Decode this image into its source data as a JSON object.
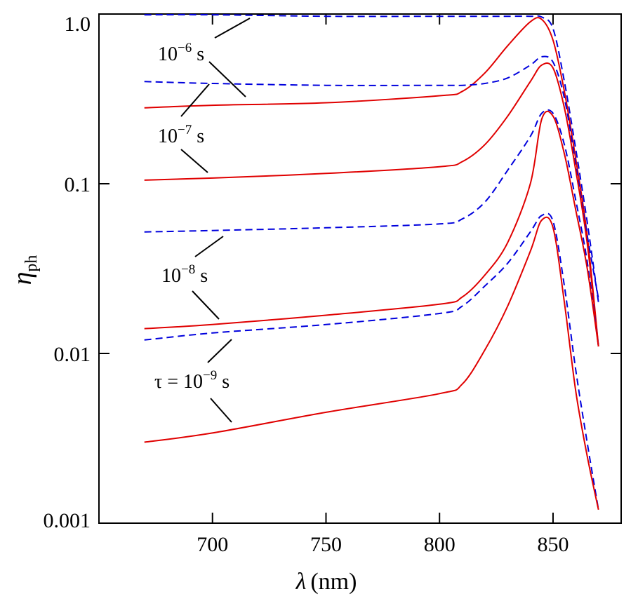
{
  "chart_data": {
    "type": "line",
    "xlabel": {
      "symbol": "λ",
      "unit": "(nm)"
    },
    "ylabel": {
      "symbol": "η",
      "sub": "ph"
    },
    "xlim": [
      650,
      880
    ],
    "ylim": [
      0.001,
      1.0
    ],
    "yscale": "log",
    "xticks": [
      700,
      750,
      800,
      850
    ],
    "yticks": [
      {
        "value": 1.0,
        "label": "1.0"
      },
      {
        "value": 0.1,
        "label": "0.1"
      },
      {
        "value": 0.01,
        "label": "0.01"
      },
      {
        "value": 0.001,
        "label": "0.001"
      }
    ],
    "grid": false,
    "colors": {
      "solid": "#e00000",
      "dashed": "#0000dd"
    },
    "x": [
      670,
      700,
      750,
      800,
      810,
      820,
      830,
      840,
      845,
      850,
      855,
      860,
      865,
      870
    ],
    "series": [
      {
        "tau": "10^-6 s",
        "style": "dashed",
        "values": [
          0.99,
          0.99,
          0.97,
          0.97,
          0.97,
          0.97,
          0.97,
          0.97,
          0.96,
          0.82,
          0.4,
          0.16,
          0.06,
          0.02
        ]
      },
      {
        "tau": "10^-6 s",
        "style": "solid",
        "values": [
          0.28,
          0.29,
          0.3,
          0.33,
          0.35,
          0.45,
          0.65,
          0.9,
          0.93,
          0.7,
          0.35,
          0.14,
          0.05,
          0.011
        ]
      },
      {
        "tau": "10^-7 s",
        "style": "dashed",
        "values": [
          0.4,
          0.39,
          0.38,
          0.38,
          0.38,
          0.39,
          0.42,
          0.5,
          0.56,
          0.52,
          0.32,
          0.13,
          0.05,
          0.021
        ]
      },
      {
        "tau": "10^-7 s",
        "style": "solid",
        "values": [
          0.105,
          0.108,
          0.115,
          0.126,
          0.135,
          0.17,
          0.25,
          0.4,
          0.5,
          0.48,
          0.28,
          0.12,
          0.045,
          0.011
        ]
      },
      {
        "tau": "10^-8 s",
        "style": "dashed",
        "values": [
          0.052,
          0.053,
          0.055,
          0.058,
          0.062,
          0.078,
          0.12,
          0.19,
          0.26,
          0.26,
          0.17,
          0.08,
          0.035,
          0.011
        ]
      },
      {
        "tau": "10^-8 s",
        "style": "solid",
        "values": [
          0.014,
          0.0148,
          0.0168,
          0.0195,
          0.0215,
          0.029,
          0.045,
          0.1,
          0.24,
          0.25,
          0.15,
          0.07,
          0.032,
          0.011
        ]
      },
      {
        "tau": "10^-9 s",
        "style": "dashed",
        "values": [
          0.012,
          0.0132,
          0.0148,
          0.0172,
          0.019,
          0.025,
          0.034,
          0.052,
          0.065,
          0.06,
          0.025,
          0.008,
          0.003,
          0.0012
        ]
      },
      {
        "tau": "10^-9 s",
        "style": "solid",
        "values": [
          0.003,
          0.0034,
          0.0045,
          0.0058,
          0.0066,
          0.0105,
          0.019,
          0.04,
          0.061,
          0.055,
          0.02,
          0.006,
          0.0025,
          0.0012
        ]
      }
    ],
    "annotations": [
      {
        "prefix": "",
        "base": "10",
        "exp": "−6",
        "unit": " s"
      },
      {
        "prefix": "",
        "base": "10",
        "exp": "−7",
        "unit": " s"
      },
      {
        "prefix": "",
        "base": "10",
        "exp": "−8",
        "unit": " s"
      },
      {
        "prefix": "τ = ",
        "base": "10",
        "exp": "−9",
        "unit": " s"
      }
    ]
  }
}
